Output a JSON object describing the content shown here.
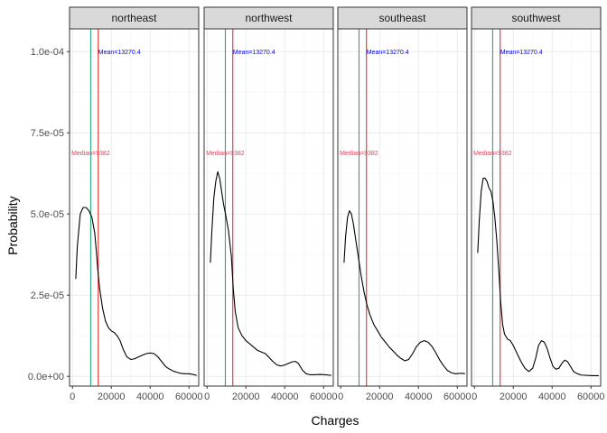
{
  "chart_data": {
    "type": "line",
    "xlabel": "Charges",
    "ylabel": "Probability",
    "xlim": [
      -1500,
      65000
    ],
    "ylim": [
      -3e-06,
      0.000107
    ],
    "x_ticks": [
      0,
      20000,
      40000,
      60000
    ],
    "x_tick_labels": [
      "0",
      "20000",
      "40000",
      "60000"
    ],
    "y_ticks": [
      0,
      2.5e-05,
      5e-05,
      7.5e-05,
      0.0001
    ],
    "y_tick_labels": [
      "0.0e+00",
      "2.5e-05",
      "5.0e-05",
      "7.5e-05",
      "1.0e-04"
    ],
    "grid": true,
    "colors": {
      "density": "#000000",
      "mean_line": "#e41a1c",
      "median_line": "#1b9e77",
      "mean_text": "#0000ff",
      "median_text": "#e4405f",
      "strip_fill": "#d9d9d9",
      "grid": "#ebebeb"
    },
    "mean": 13270.4,
    "median": 9382,
    "mean_label": "Mean=13270.4",
    "median_label": "Median=9382",
    "annotation_y": {
      "mean": 0.0001,
      "median": 6.9e-05
    },
    "panels": [
      {
        "name": "northeast",
        "x": [
          1700,
          2500,
          4000,
          5500,
          7000,
          8500,
          10000,
          11500,
          12500,
          13000,
          14000,
          15500,
          17000,
          18500,
          20000,
          21500,
          23000,
          24500,
          26000,
          28000,
          30000,
          32000,
          34000,
          36000,
          38000,
          40000,
          42000,
          44000,
          46000,
          48000,
          50000,
          52000,
          54000,
          56000,
          58000,
          60000,
          62000,
          64000
        ],
        "y": [
          3e-05,
          4e-05,
          5e-05,
          5.2e-05,
          5.2e-05,
          5.1e-05,
          4.9e-05,
          4.4e-05,
          3.7e-05,
          3.3e-05,
          2.7e-05,
          2.1e-05,
          1.7e-05,
          1.5e-05,
          1.4e-05,
          1.35e-05,
          1.25e-05,
          1.1e-05,
          8.5e-06,
          6e-06,
          5.2e-06,
          5.4e-06,
          6e-06,
          6.5e-06,
          7e-06,
          7.2e-06,
          7e-06,
          6e-06,
          4.5e-06,
          3e-06,
          2.2e-06,
          1.6e-06,
          1.2e-06,
          9e-07,
          8e-07,
          8e-07,
          6e-07,
          3e-07
        ]
      },
      {
        "name": "northwest",
        "x": [
          1700,
          2500,
          3500,
          4500,
          5500,
          6500,
          7500,
          8500,
          9500,
          11000,
          12500,
          13500,
          14500,
          16000,
          18000,
          20000,
          22000,
          24000,
          26000,
          28000,
          30000,
          32000,
          34000,
          36000,
          38000,
          40000,
          42000,
          44000,
          45500,
          47000,
          49000,
          51000,
          53000,
          55000,
          58000,
          61000,
          64000
        ],
        "y": [
          3.5e-05,
          4.5e-05,
          5.5e-05,
          6e-05,
          6.3e-05,
          6.1e-05,
          5.7e-05,
          5.3e-05,
          5e-05,
          4.5e-05,
          3.7e-05,
          2.7e-05,
          2e-05,
          1.5e-05,
          1.25e-05,
          1.1e-05,
          1e-05,
          9e-06,
          8e-06,
          7.5e-06,
          7e-06,
          5.8e-06,
          4.5e-06,
          3.5e-06,
          3.2e-06,
          3.5e-06,
          4e-06,
          4.5e-06,
          4.6e-06,
          4e-06,
          2e-06,
          8e-07,
          5e-07,
          5e-07,
          6e-07,
          5e-07,
          3e-07
        ]
      },
      {
        "name": "southeast",
        "x": [
          1700,
          2500,
          3500,
          4500,
          5500,
          6500,
          7500,
          9000,
          10500,
          12000,
          13500,
          15000,
          17000,
          19000,
          21000,
          23000,
          25000,
          27000,
          29000,
          31000,
          33000,
          35000,
          37000,
          39000,
          41000,
          43000,
          45000,
          47000,
          49000,
          51000,
          53000,
          55000,
          57000,
          59000,
          61000,
          63000,
          64000
        ],
        "y": [
          3.5e-05,
          4.3e-05,
          4.9e-05,
          5.1e-05,
          5e-05,
          4.7e-05,
          4.3e-05,
          3.7e-05,
          3.1e-05,
          2.6e-05,
          2.2e-05,
          1.9e-05,
          1.6e-05,
          1.4e-05,
          1.2e-05,
          1.05e-05,
          9e-06,
          7.8e-06,
          6.5e-06,
          5.5e-06,
          4.8e-06,
          5.2e-06,
          7e-06,
          9.2e-06,
          1.05e-05,
          1.1e-05,
          1.05e-05,
          9.2e-06,
          7.2e-06,
          5e-06,
          3.2e-06,
          1.8e-06,
          1.1e-06,
          8e-07,
          9e-07,
          9e-07,
          8e-07
        ]
      },
      {
        "name": "southwest",
        "x": [
          1700,
          2500,
          3500,
          4500,
          5500,
          6500,
          7500,
          8500,
          9500,
          10500,
          11500,
          12500,
          13500,
          14500,
          15500,
          17000,
          18500,
          20000,
          22000,
          24000,
          26000,
          28000,
          30000,
          31500,
          33000,
          34500,
          36000,
          37500,
          39000,
          40500,
          42000,
          43500,
          45000,
          46500,
          48000,
          49500,
          51000,
          53000,
          55000,
          58000,
          61000,
          64000
        ],
        "y": [
          3.8e-05,
          4.8e-05,
          5.7e-05,
          6.1e-05,
          6.1e-05,
          6e-05,
          5.8e-05,
          5.7e-05,
          5.4e-05,
          4.9e-05,
          4.2e-05,
          3.3e-05,
          2.3e-05,
          1.6e-05,
          1.3e-05,
          1.15e-05,
          1.1e-05,
          9.5e-06,
          7e-06,
          4.5e-06,
          2.5e-06,
          1.5e-06,
          2.5e-06,
          5.5e-06,
          9.5e-06,
          1.1e-05,
          1.05e-05,
          8.5e-06,
          5.5e-06,
          3e-06,
          2.2e-06,
          2.5e-06,
          4e-06,
          5e-06,
          4.5e-06,
          3e-06,
          1.5e-06,
          8e-07,
          4e-07,
          3e-07,
          2e-07,
          2e-07
        ]
      }
    ]
  }
}
